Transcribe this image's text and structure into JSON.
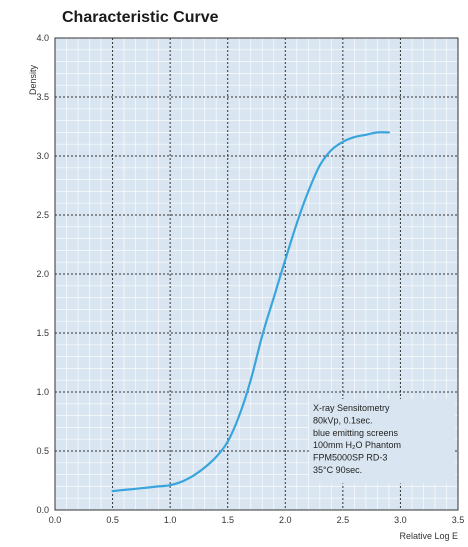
{
  "chart_data": {
    "type": "line",
    "title": "Characteristic Curve",
    "xlabel": "Relative Log E",
    "ylabel": "Density",
    "xlim": [
      0.0,
      3.5
    ],
    "ylim": [
      0.0,
      4.0
    ],
    "x_ticks": [
      "0.0",
      "0.5",
      "1.0",
      "1.5",
      "2.0",
      "2.5",
      "3.0",
      "3.5"
    ],
    "y_ticks": [
      "0.0",
      "0.5",
      "1.0",
      "1.5",
      "2.0",
      "2.5",
      "3.0",
      "3.5",
      "4.0"
    ],
    "grid": true,
    "series": [
      {
        "color": "#3aa5dc",
        "x": [
          0.5,
          0.6,
          0.7,
          0.8,
          0.9,
          1.0,
          1.1,
          1.2,
          1.3,
          1.4,
          1.5,
          1.6,
          1.7,
          1.8,
          1.9,
          2.0,
          2.1,
          2.2,
          2.3,
          2.4,
          2.5,
          2.6,
          2.7,
          2.8,
          2.9
        ],
        "y": [
          0.16,
          0.17,
          0.18,
          0.19,
          0.2,
          0.21,
          0.24,
          0.29,
          0.36,
          0.45,
          0.58,
          0.8,
          1.1,
          1.48,
          1.8,
          2.12,
          2.43,
          2.7,
          2.92,
          3.05,
          3.12,
          3.16,
          3.18,
          3.2,
          3.2
        ]
      }
    ],
    "annotation": [
      "X-ray Sensitometry",
      "80kVp, 0.1sec.",
      "blue emitting screens",
      "100mm H₂O Phantom",
      "FPM5000SP RD-3",
      "35°C 90sec."
    ],
    "colors": {
      "plot_background": "#d9e6f1",
      "grid_major": "#333333",
      "grid_minor": "#ffffff",
      "curve": "#3aa5dc"
    }
  }
}
